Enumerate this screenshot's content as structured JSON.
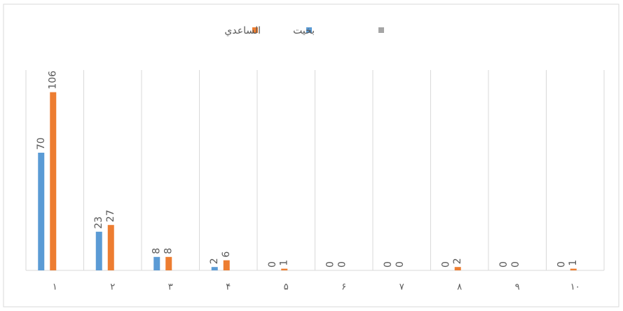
{
  "chart_data": {
    "type": "bar",
    "categories": [
      "١",
      "٢",
      "٣",
      "۴",
      "۵",
      "۶",
      "٧",
      "٨",
      "٩",
      "١٠"
    ],
    "series": [
      {
        "name": "بخيت",
        "color": "#5b9bd5",
        "values": [
          70,
          23,
          8,
          2,
          0,
          0,
          0,
          0,
          0,
          0
        ]
      },
      {
        "name": "الساعدي",
        "color": "#ed7d31",
        "values": [
          106,
          27,
          8,
          6,
          1,
          0,
          0,
          2,
          0,
          1
        ]
      }
    ],
    "grid": true
  }
}
